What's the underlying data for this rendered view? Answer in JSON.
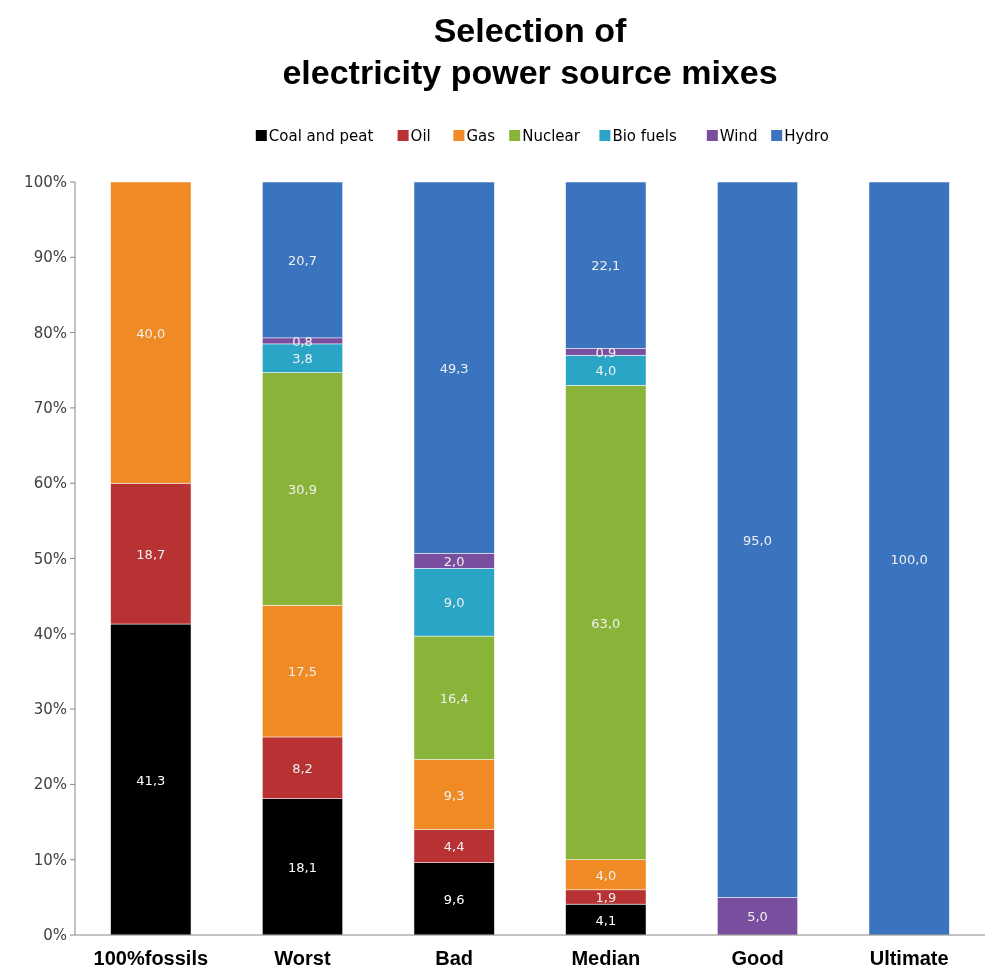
{
  "chart_data": {
    "type": "bar",
    "title": "Selection of electricity power source mixes",
    "stacked": true,
    "legend": "top",
    "grid": false,
    "categories": [
      "100%fossils",
      "Worst",
      "Bad",
      "Median",
      "Good",
      "Ultimate"
    ],
    "ylim": [
      0,
      100
    ],
    "yticks": [
      {
        "value": 0,
        "label": "0%"
      },
      {
        "value": 10,
        "label": "10%"
      },
      {
        "value": 20,
        "label": "20%"
      },
      {
        "value": 30,
        "label": "30%"
      },
      {
        "value": 40,
        "label": "40%"
      },
      {
        "value": 50,
        "label": "50%"
      },
      {
        "value": 60,
        "label": "60%"
      },
      {
        "value": 70,
        "label": "70%"
      },
      {
        "value": 80,
        "label": "80%"
      },
      {
        "value": 90,
        "label": "90%"
      },
      {
        "value": 100,
        "label": "100%"
      }
    ],
    "series": [
      {
        "name": "Coal and peat",
        "color": "#000000",
        "values": [
          41.3,
          18.1,
          9.6,
          4.1,
          null,
          null
        ],
        "value_labels": [
          "41,3",
          "18,1",
          "9,6",
          "4,1",
          null,
          null
        ]
      },
      {
        "name": "Oil",
        "color": "#b83234",
        "values": [
          18.7,
          8.2,
          4.4,
          1.9,
          null,
          null
        ],
        "value_labels": [
          "18,7",
          "8,2",
          "4,4",
          "1,9",
          null,
          null
        ]
      },
      {
        "name": "Gas",
        "color": "#f08a24",
        "values": [
          40.0,
          17.5,
          9.3,
          4.0,
          null,
          null
        ],
        "value_labels": [
          "40,0",
          "17,5",
          "9,3",
          "4,0",
          null,
          null
        ]
      },
      {
        "name": "Nuclear",
        "color": "#8ab439",
        "values": [
          null,
          30.9,
          16.4,
          63.0,
          null,
          null
        ],
        "value_labels": [
          null,
          "30,9",
          "16,4",
          "63,0",
          null,
          null
        ]
      },
      {
        "name": "Bio fuels",
        "color": "#2aa5c5",
        "values": [
          null,
          3.8,
          9.0,
          4.0,
          null,
          null
        ],
        "value_labels": [
          null,
          "3,8",
          "9,0",
          "4,0",
          null,
          null
        ]
      },
      {
        "name": "Wind",
        "color": "#7a4e9f",
        "values": [
          null,
          0.8,
          2.0,
          0.9,
          5.0,
          null
        ],
        "value_labels": [
          null,
          "0,8",
          "2,0",
          "0,9",
          "5,0",
          null
        ]
      },
      {
        "name": "Hydro",
        "color": "#3a74be",
        "values": [
          null,
          20.7,
          49.3,
          22.1,
          95.0,
          100.0
        ],
        "value_labels": [
          null,
          "20,7",
          "49,3",
          "22,1",
          "95,0",
          "100,0"
        ]
      }
    ]
  }
}
